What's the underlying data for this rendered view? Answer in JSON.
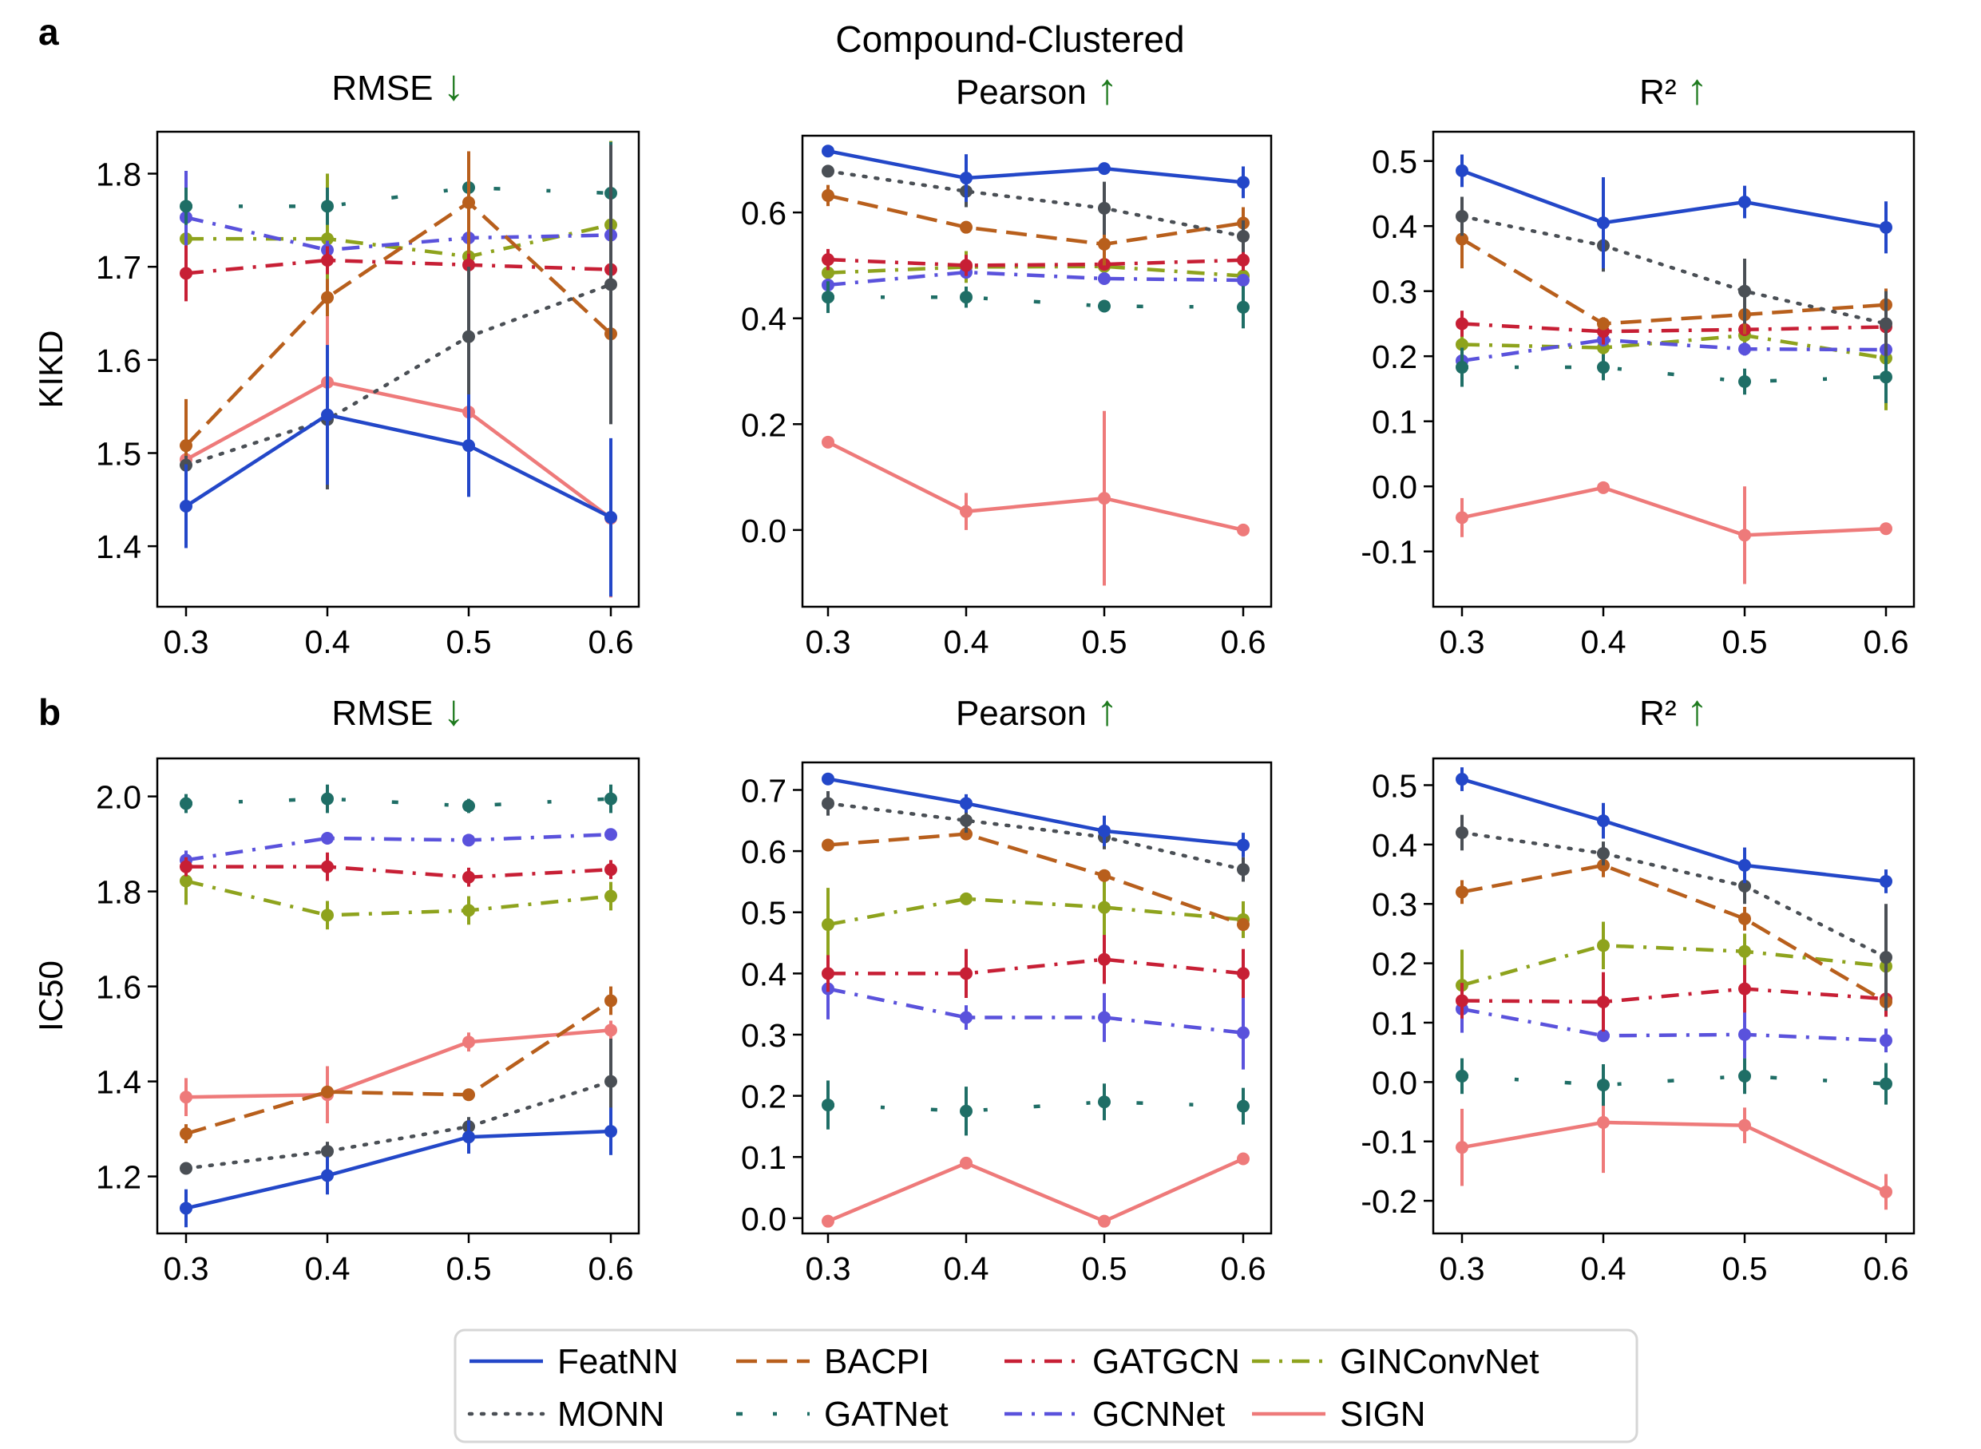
{
  "figure": {
    "suptitle": "Compound-Clustered",
    "panel_labels": [
      "a",
      "b"
    ],
    "up_arrow": "↑",
    "down_arrow": "↓",
    "arrow_color": "#1e7a1e"
  },
  "series_styles": [
    {
      "name": "FeatNN",
      "color": "#2347c8",
      "dash": "solid"
    },
    {
      "name": "MONN",
      "color": "#4a4f55",
      "dash": "dot"
    },
    {
      "name": "BACPI",
      "color": "#b85f1c",
      "dash": "dash"
    },
    {
      "name": "GATNet",
      "color": "#1f6e66",
      "dash": "longdashdot"
    },
    {
      "name": "GATGCN",
      "color": "#c71f35",
      "dash": "dashdot"
    },
    {
      "name": "GCNNet",
      "color": "#5a52dc",
      "dash": "dashdot"
    },
    {
      "name": "GINConvNet",
      "color": "#8ea31d",
      "dash": "dashdot"
    },
    {
      "name": "SIGN",
      "color": "#ee7a7a",
      "dash": "solid"
    }
  ],
  "legend": {
    "position": "bottom-center",
    "columns": [
      [
        "FeatNN",
        "MONN"
      ],
      [
        "BACPI",
        "GATNet"
      ],
      [
        "GATGCN",
        "GCNNet"
      ],
      [
        "GINConvNet",
        "SIGN"
      ]
    ]
  },
  "chart_data": [
    {
      "type": "line",
      "row": "a",
      "title": "RMSE",
      "direction": "down",
      "ylabel": "KIKD",
      "x": [
        0.3,
        0.4,
        0.5,
        0.6
      ],
      "ylim": [
        1.335,
        1.845
      ],
      "yticks": [
        1.4,
        1.5,
        1.6,
        1.7,
        1.8
      ],
      "yticks_text": [
        "1.4",
        "1.5",
        "1.6",
        "1.7",
        "1.8"
      ],
      "xticks_text": [
        "0.3",
        "0.4",
        "0.5",
        "0.6"
      ],
      "series": [
        {
          "name": "FeatNN",
          "values": [
            1.443,
            1.541,
            1.508,
            1.431
          ],
          "err": [
            0.045,
            0.075,
            0.055,
            0.085
          ]
        },
        {
          "name": "MONN",
          "values": [
            1.487,
            1.536,
            1.625,
            1.681
          ],
          "err": [
            0.01,
            0.075,
            0.075,
            0.15
          ]
        },
        {
          "name": "BACPI",
          "values": [
            1.508,
            1.667,
            1.769,
            1.628
          ],
          "err": [
            0.05,
            0.02,
            0.055,
            0.08
          ]
        },
        {
          "name": "GATNet",
          "values": [
            1.765,
            1.765,
            1.785,
            1.779
          ],
          "err": [
            0.02,
            0.02,
            0.02,
            0.055
          ]
        },
        {
          "name": "GATGCN",
          "values": [
            1.693,
            1.707,
            1.702,
            1.697
          ],
          "err": [
            0.03,
            0.015,
            0.015,
            0.02
          ]
        },
        {
          "name": "GCNNet",
          "values": [
            1.753,
            1.718,
            1.731,
            1.734
          ],
          "err": [
            0.05,
            0.01,
            0.015,
            0.01
          ]
        },
        {
          "name": "GINConvNet",
          "values": [
            1.73,
            1.73,
            1.711,
            1.745
          ],
          "err": [
            0.03,
            0.07,
            0.02,
            0.09
          ]
        },
        {
          "name": "SIGN",
          "values": [
            1.493,
            1.576,
            1.544,
            1.43
          ],
          "err": [
            0.02,
            0.11,
            0.09,
            0.085
          ]
        }
      ]
    },
    {
      "type": "line",
      "row": "a",
      "title": "Pearson",
      "direction": "up",
      "ylabel": "",
      "x": [
        0.3,
        0.4,
        0.5,
        0.6
      ],
      "ylim": [
        -0.145,
        0.745
      ],
      "yticks": [
        0.0,
        0.2,
        0.4,
        0.6
      ],
      "yticks_text": [
        "0.0",
        "0.2",
        "0.4",
        "0.6"
      ],
      "xticks_text": [
        "0.3",
        "0.4",
        "0.5",
        "0.6"
      ],
      "series": [
        {
          "name": "FeatNN",
          "values": [
            0.716,
            0.665,
            0.683,
            0.657
          ],
          "err": [
            0.01,
            0.045,
            0.01,
            0.03
          ]
        },
        {
          "name": "MONN",
          "values": [
            0.678,
            0.64,
            0.608,
            0.555
          ],
          "err": [
            0.01,
            0.03,
            0.05,
            0.03
          ]
        },
        {
          "name": "BACPI",
          "values": [
            0.632,
            0.572,
            0.54,
            0.58
          ],
          "err": [
            0.02,
            0.01,
            0.04,
            0.03
          ]
        },
        {
          "name": "GATNet",
          "values": [
            0.44,
            0.44,
            0.423,
            0.421
          ],
          "err": [
            0.03,
            0.02,
            0.01,
            0.04
          ]
        },
        {
          "name": "GATGCN",
          "values": [
            0.511,
            0.5,
            0.502,
            0.51
          ],
          "err": [
            0.02,
            0.02,
            0.01,
            0.02
          ]
        },
        {
          "name": "GCNNet",
          "values": [
            0.463,
            0.487,
            0.475,
            0.472
          ],
          "err": [
            0.01,
            0.01,
            0.01,
            0.01
          ]
        },
        {
          "name": "GINConvNet",
          "values": [
            0.486,
            0.497,
            0.498,
            0.48
          ],
          "err": [
            0.02,
            0.03,
            0.02,
            0.03
          ]
        },
        {
          "name": "SIGN",
          "values": [
            0.166,
            0.035,
            0.06,
            0.0
          ],
          "err": [
            0.005,
            0.035,
            0.165,
            0.005
          ]
        }
      ]
    },
    {
      "type": "line",
      "row": "a",
      "title": "R²",
      "direction": "up",
      "ylabel": "",
      "x": [
        0.3,
        0.4,
        0.5,
        0.6
      ],
      "ylim": [
        -0.185,
        0.545
      ],
      "yticks": [
        -0.1,
        0.0,
        0.1,
        0.2,
        0.3,
        0.4,
        0.5
      ],
      "yticks_text": [
        "-0.1",
        "0.0",
        "0.1",
        "0.2",
        "0.3",
        "0.4",
        "0.5"
      ],
      "xticks_text": [
        "0.3",
        "0.4",
        "0.5",
        "0.6"
      ],
      "series": [
        {
          "name": "FeatNN",
          "values": [
            0.485,
            0.405,
            0.437,
            0.398
          ],
          "err": [
            0.025,
            0.07,
            0.025,
            0.04
          ]
        },
        {
          "name": "MONN",
          "values": [
            0.415,
            0.37,
            0.3,
            0.25
          ],
          "err": [
            0.03,
            0.04,
            0.05,
            0.05
          ]
        },
        {
          "name": "BACPI",
          "values": [
            0.38,
            0.25,
            0.264,
            0.279
          ],
          "err": [
            0.045,
            0.01,
            0.03,
            0.025
          ]
        },
        {
          "name": "GATNet",
          "values": [
            0.183,
            0.183,
            0.161,
            0.168
          ],
          "err": [
            0.03,
            0.02,
            0.02,
            0.04
          ]
        },
        {
          "name": "GATGCN",
          "values": [
            0.25,
            0.238,
            0.241,
            0.245
          ],
          "err": [
            0.02,
            0.02,
            0.01,
            0.02
          ]
        },
        {
          "name": "GCNNet",
          "values": [
            0.193,
            0.225,
            0.211,
            0.21
          ],
          "err": [
            0.02,
            0.01,
            0.01,
            0.01
          ]
        },
        {
          "name": "GINConvNet",
          "values": [
            0.218,
            0.213,
            0.232,
            0.197
          ],
          "err": [
            0.02,
            0.045,
            0.03,
            0.08
          ]
        },
        {
          "name": "SIGN",
          "values": [
            -0.048,
            -0.002,
            -0.075,
            -0.065
          ],
          "err": [
            0.03,
            0.005,
            0.075,
            0.005
          ]
        }
      ]
    },
    {
      "type": "line",
      "row": "b",
      "title": "RMSE",
      "direction": "down",
      "ylabel": "IC50",
      "x": [
        0.3,
        0.4,
        0.5,
        0.6
      ],
      "ylim": [
        1.08,
        2.08
      ],
      "yticks": [
        1.2,
        1.4,
        1.6,
        1.8,
        2.0
      ],
      "yticks_text": [
        "1.2",
        "1.4",
        "1.6",
        "1.8",
        "2.0"
      ],
      "xticks_text": [
        "0.3",
        "0.4",
        "0.5",
        "0.6"
      ],
      "series": [
        {
          "name": "FeatNN",
          "values": [
            1.133,
            1.202,
            1.283,
            1.295
          ],
          "err": [
            0.04,
            0.04,
            0.035,
            0.05
          ]
        },
        {
          "name": "MONN",
          "values": [
            1.217,
            1.253,
            1.305,
            1.4
          ],
          "err": [
            0.01,
            0.02,
            0.02,
            0.09
          ]
        },
        {
          "name": "BACPI",
          "values": [
            1.29,
            1.378,
            1.372,
            1.57
          ],
          "err": [
            0.02,
            0.01,
            0.01,
            0.03
          ]
        },
        {
          "name": "GATNet",
          "values": [
            1.985,
            1.995,
            1.98,
            1.995
          ],
          "err": [
            0.02,
            0.03,
            0.015,
            0.03
          ]
        },
        {
          "name": "GATGCN",
          "values": [
            1.852,
            1.852,
            1.83,
            1.846
          ],
          "err": [
            0.02,
            0.03,
            0.02,
            0.02
          ]
        },
        {
          "name": "GCNNet",
          "values": [
            1.866,
            1.912,
            1.908,
            1.92
          ],
          "err": [
            0.02,
            0.01,
            0.01,
            0.01
          ]
        },
        {
          "name": "GINConvNet",
          "values": [
            1.822,
            1.75,
            1.76,
            1.79
          ],
          "err": [
            0.05,
            0.03,
            0.03,
            0.03
          ]
        },
        {
          "name": "SIGN",
          "values": [
            1.367,
            1.372,
            1.483,
            1.508
          ],
          "err": [
            0.04,
            0.06,
            0.02,
            0.02
          ]
        }
      ]
    },
    {
      "type": "line",
      "row": "b",
      "title": "Pearson",
      "direction": "up",
      "ylabel": "",
      "x": [
        0.3,
        0.4,
        0.5,
        0.6
      ],
      "ylim": [
        -0.025,
        0.745
      ],
      "yticks": [
        0.0,
        0.1,
        0.2,
        0.3,
        0.4,
        0.5,
        0.6,
        0.7
      ],
      "yticks_text": [
        "0.0",
        "0.1",
        "0.2",
        "0.3",
        "0.4",
        "0.5",
        "0.6",
        "0.7"
      ],
      "xticks_text": [
        "0.3",
        "0.4",
        "0.5",
        "0.6"
      ],
      "series": [
        {
          "name": "FeatNN",
          "values": [
            0.718,
            0.678,
            0.633,
            0.61
          ],
          "err": [
            0.01,
            0.015,
            0.025,
            0.02
          ]
        },
        {
          "name": "MONN",
          "values": [
            0.678,
            0.65,
            0.623,
            0.57
          ],
          "err": [
            0.02,
            0.02,
            0.02,
            0.02
          ]
        },
        {
          "name": "BACPI",
          "values": [
            0.61,
            0.628,
            0.56,
            0.48
          ],
          "err": [
            0.01,
            0.01,
            0.01,
            0.01
          ]
        },
        {
          "name": "GATNet",
          "values": [
            0.185,
            0.175,
            0.19,
            0.183
          ],
          "err": [
            0.04,
            0.04,
            0.03,
            0.03
          ]
        },
        {
          "name": "GATGCN",
          "values": [
            0.4,
            0.4,
            0.423,
            0.4
          ],
          "err": [
            0.03,
            0.04,
            0.04,
            0.04
          ]
        },
        {
          "name": "GCNNet",
          "values": [
            0.375,
            0.328,
            0.328,
            0.303
          ],
          "err": [
            0.05,
            0.02,
            0.04,
            0.06
          ]
        },
        {
          "name": "GINConvNet",
          "values": [
            0.48,
            0.522,
            0.508,
            0.488
          ],
          "err": [
            0.06,
            0.01,
            0.05,
            0.03
          ]
        },
        {
          "name": "SIGN",
          "values": [
            -0.005,
            0.09,
            -0.005,
            0.097
          ],
          "err": [
            0.005,
            0.005,
            0.005,
            0.005
          ]
        }
      ]
    },
    {
      "type": "line",
      "row": "b",
      "title": "R²",
      "direction": "up",
      "ylabel": "",
      "x": [
        0.3,
        0.4,
        0.5,
        0.6
      ],
      "ylim": [
        -0.255,
        0.545
      ],
      "yticks": [
        -0.2,
        -0.1,
        0.0,
        0.1,
        0.2,
        0.3,
        0.4,
        0.5
      ],
      "yticks_text": [
        "-0.2",
        "-0.1",
        "0.0",
        "0.1",
        "0.2",
        "0.3",
        "0.4",
        "0.5"
      ],
      "xticks_text": [
        "0.3",
        "0.4",
        "0.5",
        "0.6"
      ],
      "series": [
        {
          "name": "FeatNN",
          "values": [
            0.51,
            0.44,
            0.365,
            0.338
          ],
          "err": [
            0.02,
            0.03,
            0.03,
            0.02
          ]
        },
        {
          "name": "MONN",
          "values": [
            0.42,
            0.385,
            0.33,
            0.21
          ],
          "err": [
            0.03,
            0.02,
            0.03,
            0.09
          ]
        },
        {
          "name": "BACPI",
          "values": [
            0.32,
            0.365,
            0.275,
            0.135
          ],
          "err": [
            0.02,
            0.02,
            0.02,
            0.01
          ]
        },
        {
          "name": "GATNet",
          "values": [
            0.01,
            -0.005,
            0.01,
            -0.003
          ],
          "err": [
            0.03,
            0.035,
            0.03,
            0.035
          ]
        },
        {
          "name": "GATGCN",
          "values": [
            0.137,
            0.135,
            0.157,
            0.14
          ],
          "err": [
            0.03,
            0.05,
            0.04,
            0.03
          ]
        },
        {
          "name": "GCNNet",
          "values": [
            0.123,
            0.078,
            0.08,
            0.07
          ],
          "err": [
            0.04,
            0.01,
            0.04,
            0.02
          ]
        },
        {
          "name": "GINConvNet",
          "values": [
            0.163,
            0.23,
            0.22,
            0.195
          ],
          "err": [
            0.06,
            0.04,
            0.03,
            0.05
          ]
        },
        {
          "name": "SIGN",
          "values": [
            -0.11,
            -0.068,
            -0.073,
            -0.185
          ],
          "err": [
            0.065,
            0.085,
            0.03,
            0.03
          ]
        }
      ]
    }
  ]
}
